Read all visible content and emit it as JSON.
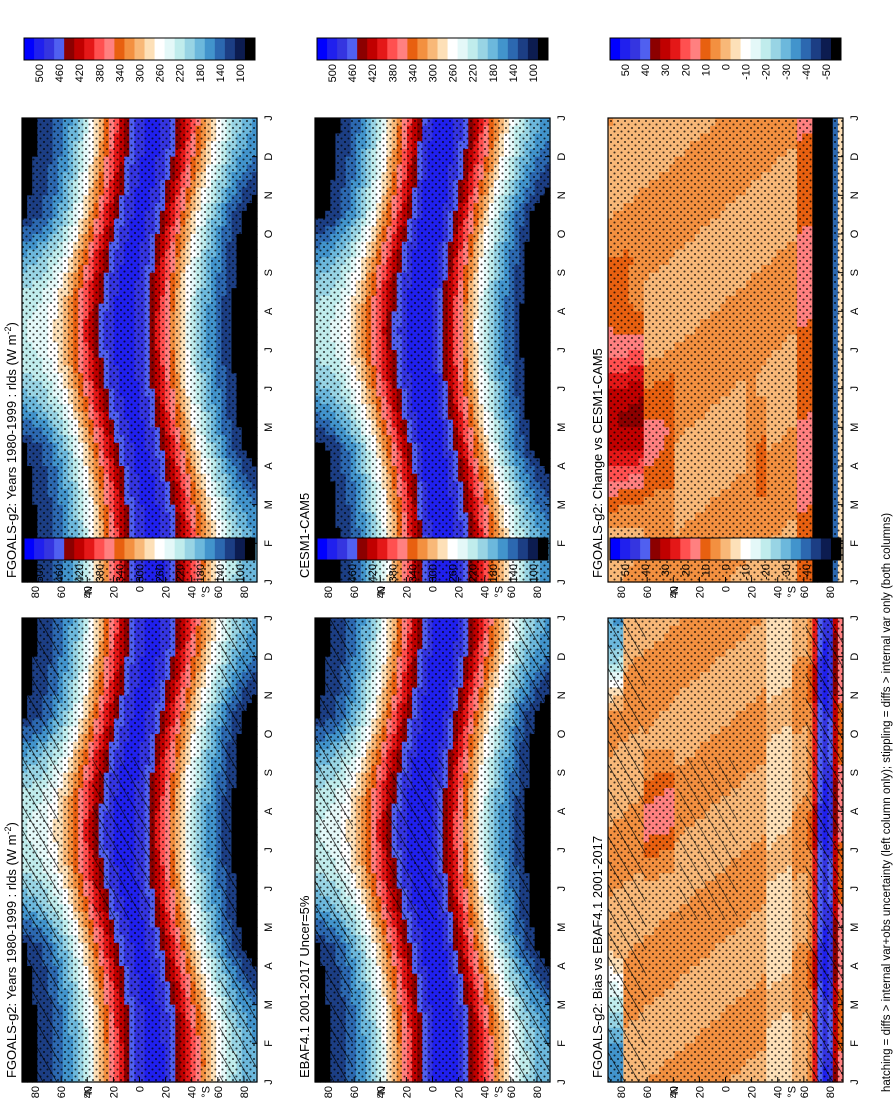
{
  "footnote": "hatching = diffs > internal var+obs uncertainty (left column only); stippling = diffs > internal var only (both columns)",
  "panels": [
    {
      "id": "p-model-left",
      "title": "FGOALS-g2: Years 1980-1999 : rlds (W m",
      "title_sup": "-2",
      "title_tail": ")",
      "scale": "abs",
      "mode": "model",
      "hatch": true
    },
    {
      "id": "p-model-right",
      "title": "FGOALS-g2: Years 1980-1999 : rlds (W m",
      "title_sup": "-2",
      "title_tail": ")",
      "scale": "abs",
      "mode": "model",
      "hatch": false
    },
    {
      "id": "p-obs",
      "title": "EBAF4.1 2001-2017 Uncer=5%",
      "title_sup": "",
      "title_tail": "",
      "scale": "abs",
      "mode": "obs",
      "hatch": true
    },
    {
      "id": "p-cesm",
      "title": "CESM1-CAM5",
      "title_sup": "",
      "title_tail": "",
      "scale": "abs",
      "mode": "cesm",
      "hatch": false
    },
    {
      "id": "p-bias",
      "title": "FGOALS-g2: Bias vs EBAF4.1 2001-2017",
      "title_sup": "",
      "title_tail": "",
      "scale": "diff",
      "mode": "bias",
      "hatch": true
    },
    {
      "id": "p-change",
      "title": "FGOALS-g2: Change vs CESM1-CAM5",
      "title_sup": "",
      "title_tail": "",
      "scale": "diff",
      "mode": "change",
      "hatch": false
    }
  ],
  "chart_data": {
    "type": "heatmap",
    "variable": "rlds",
    "units": "W m-2",
    "months": [
      "J",
      "F",
      "M",
      "A",
      "M",
      "J",
      "J",
      "A",
      "S",
      "O",
      "N",
      "D",
      "J"
    ],
    "lat_ticks": [
      "80",
      "60",
      "40",
      "20",
      "0",
      "20",
      "40",
      "60",
      "80"
    ],
    "lat_hemi_left": "N",
    "lat_hemi_right": "S",
    "abs_levels": [
      500,
      480,
      460,
      440,
      420,
      400,
      380,
      360,
      340,
      320,
      300,
      280,
      260,
      240,
      220,
      200,
      180,
      160,
      140,
      120,
      100
    ],
    "abs_labels": [
      "500",
      "460",
      "420",
      "380",
      "340",
      "300",
      "260",
      "220",
      "180",
      "140",
      "100"
    ],
    "abs_colors": [
      "#0000ff",
      "#2020ee",
      "#3535e0",
      "#5060f0",
      "#8c0000",
      "#c00000",
      "#e41818",
      "#ff5050",
      "#ff8080",
      "#e86010",
      "#f39040",
      "#f8b878",
      "#fde0b8",
      "#ffffff",
      "#e4f8f8",
      "#c0ecec",
      "#98d4e4",
      "#6cb8dc",
      "#4294cc",
      "#2c68b0",
      "#1c3e84",
      "#0c1c50",
      "#000000"
    ],
    "diff_levels": [
      50,
      45,
      40,
      35,
      30,
      25,
      20,
      15,
      10,
      5,
      0,
      -5,
      -10,
      -15,
      -20,
      -25,
      -30,
      -35,
      -40,
      -45,
      -50
    ],
    "diff_labels": [
      "50",
      "40",
      "30",
      "20",
      "10",
      "0",
      "-10",
      "-20",
      "-30",
      "-40",
      "-50"
    ],
    "diff_colors": [
      "#0000ff",
      "#2020ee",
      "#3535e0",
      "#5060f0",
      "#8c0000",
      "#c00000",
      "#e41818",
      "#ff5050",
      "#ff8080",
      "#e86010",
      "#f39040",
      "#f8b878",
      "#fde0b8",
      "#ffffff",
      "#e4f8f8",
      "#c0ecec",
      "#98d4e4",
      "#6cb8dc",
      "#4294cc",
      "#2c68b0",
      "#1c3e84",
      "#0c1c50",
      "#000000"
    ]
  }
}
